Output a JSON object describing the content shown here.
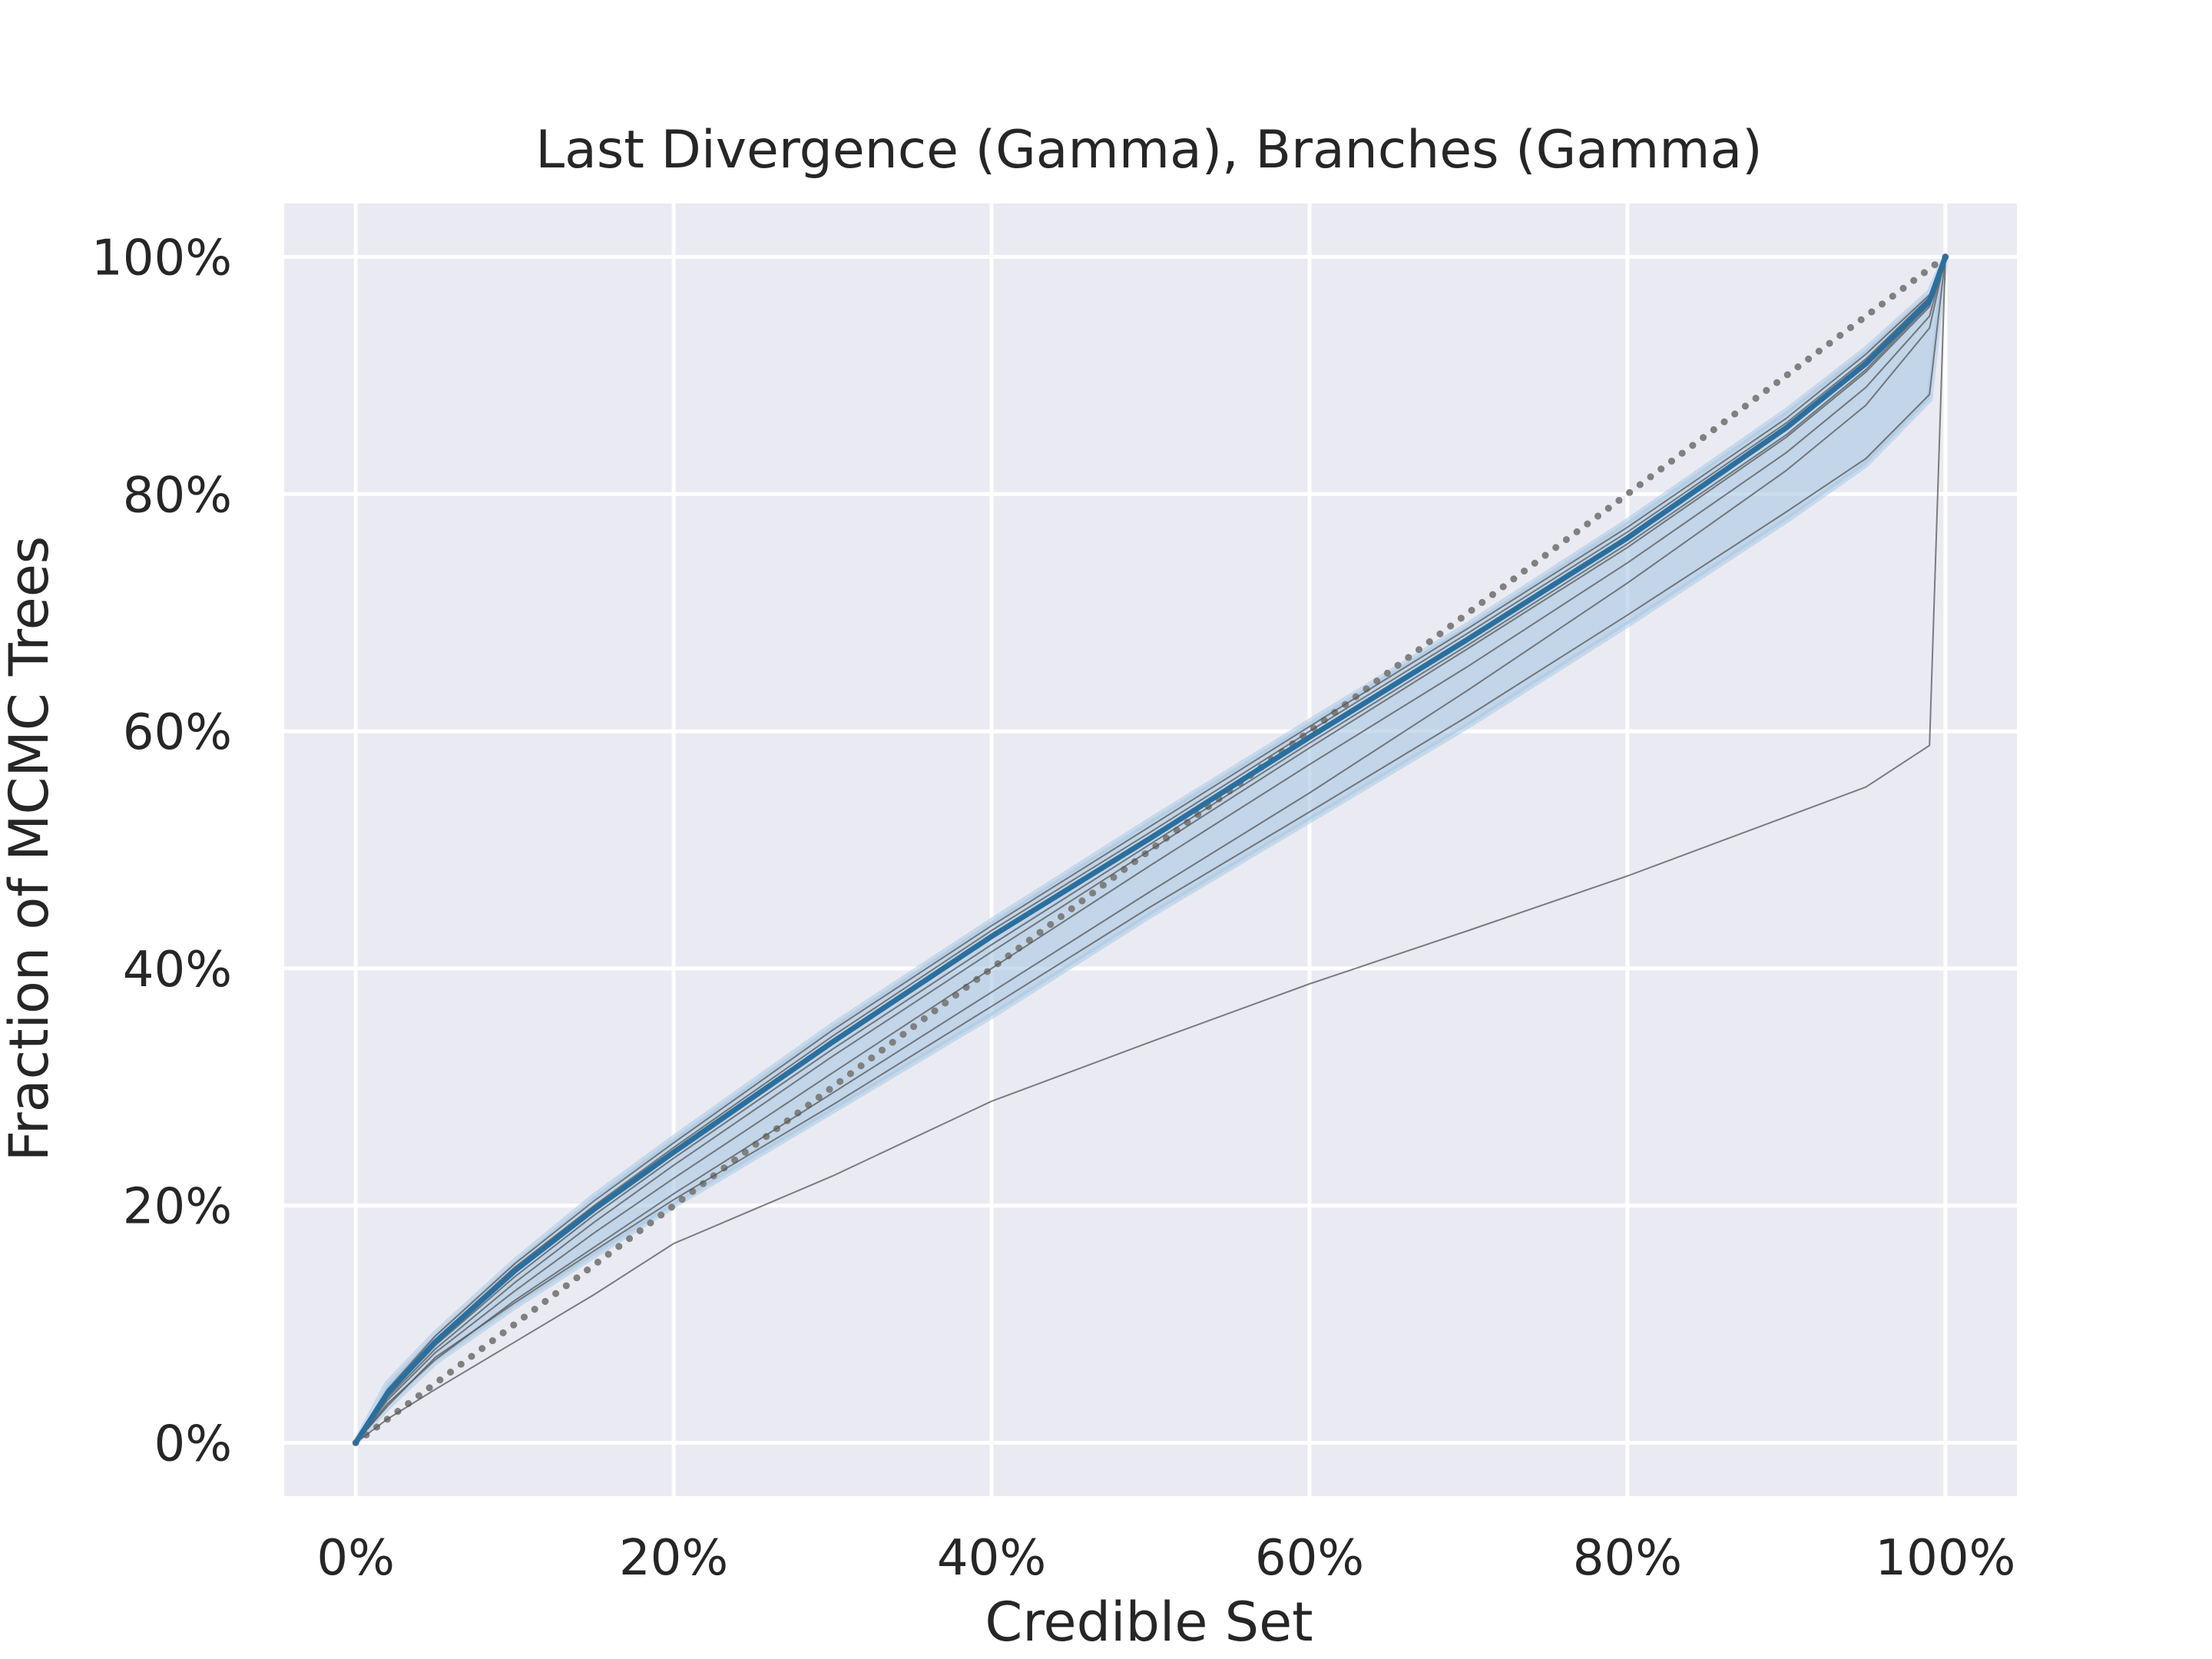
{
  "chart_data": {
    "type": "line",
    "title": "Last Divergence (Gamma), Branches (Gamma)",
    "xlabel": "Credible Set",
    "ylabel": "Fraction of MCMC Trees",
    "xlim": [
      -0.045,
      1.045
    ],
    "ylim": [
      -0.045,
      1.045
    ],
    "xticks": [
      0,
      0.2,
      0.4,
      0.6,
      0.8,
      1.0
    ],
    "yticks": [
      0,
      0.2,
      0.4,
      0.6,
      0.8,
      1.0
    ],
    "xtick_labels": [
      "0%",
      "20%",
      "40%",
      "60%",
      "80%",
      "100%"
    ],
    "ytick_labels": [
      "0%",
      "20%",
      "40%",
      "60%",
      "80%",
      "100%"
    ],
    "grid": true,
    "background": "#eaeaf2",
    "colors": {
      "mean": "#2b6f9e",
      "band": "#a9c8e3",
      "replicates": "#555555",
      "reference": "#808080"
    },
    "reference_line": {
      "style": "dotted",
      "x": [
        0,
        1
      ],
      "y": [
        0,
        1
      ]
    },
    "x": [
      0,
      0.02,
      0.05,
      0.1,
      0.15,
      0.2,
      0.3,
      0.4,
      0.5,
      0.6,
      0.7,
      0.8,
      0.9,
      0.95,
      0.99,
      1.0
    ],
    "series": [
      {
        "role": "band_upper",
        "values": [
          0,
          0.05,
          0.092,
          0.153,
          0.208,
          0.257,
          0.352,
          0.44,
          0.525,
          0.608,
          0.69,
          0.777,
          0.87,
          0.922,
          0.97,
          1.0
        ]
      },
      {
        "role": "band_lower",
        "values": [
          0,
          0.03,
          0.068,
          0.115,
          0.158,
          0.2,
          0.28,
          0.36,
          0.445,
          0.525,
          0.605,
          0.69,
          0.778,
          0.825,
          0.88,
          1.0
        ]
      },
      {
        "role": "mean",
        "values": [
          0,
          0.042,
          0.085,
          0.145,
          0.197,
          0.245,
          0.338,
          0.427,
          0.51,
          0.595,
          0.678,
          0.763,
          0.856,
          0.91,
          0.963,
          1.0
        ]
      },
      {
        "role": "replicate",
        "values": [
          0,
          0.043,
          0.087,
          0.148,
          0.2,
          0.249,
          0.343,
          0.432,
          0.515,
          0.6,
          0.683,
          0.768,
          0.86,
          0.914,
          0.966,
          1.0
        ]
      },
      {
        "role": "replicate",
        "values": [
          0,
          0.04,
          0.082,
          0.14,
          0.192,
          0.24,
          0.332,
          0.42,
          0.505,
          0.59,
          0.673,
          0.758,
          0.85,
          0.905,
          0.96,
          1.0
        ]
      },
      {
        "role": "replicate",
        "values": [
          0,
          0.045,
          0.09,
          0.151,
          0.204,
          0.253,
          0.348,
          0.436,
          0.52,
          0.604,
          0.687,
          0.772,
          0.864,
          0.918,
          0.968,
          1.0
        ]
      },
      {
        "role": "replicate",
        "values": [
          0,
          0.038,
          0.079,
          0.135,
          0.186,
          0.234,
          0.326,
          0.414,
          0.5,
          0.586,
          0.67,
          0.755,
          0.848,
          0.903,
          0.958,
          1.0
        ]
      },
      {
        "role": "replicate",
        "values": [
          0,
          0.036,
          0.076,
          0.128,
          0.177,
          0.223,
          0.312,
          0.4,
          0.487,
          0.572,
          0.655,
          0.742,
          0.835,
          0.89,
          0.95,
          1.0
        ]
      },
      {
        "role": "replicate",
        "values": [
          0,
          0.033,
          0.07,
          0.12,
          0.165,
          0.21,
          0.295,
          0.38,
          0.465,
          0.548,
          0.635,
          0.725,
          0.82,
          0.875,
          0.94,
          1.0
        ]
      },
      {
        "role": "replicate",
        "values": [
          0,
          0.031,
          0.072,
          0.118,
          0.162,
          0.205,
          0.285,
          0.368,
          0.452,
          0.532,
          0.613,
          0.698,
          0.785,
          0.83,
          0.884,
          1.0
        ]
      },
      {
        "role": "replicate",
        "values": [
          0,
          0.02,
          0.045,
          0.085,
          0.125,
          0.168,
          0.225,
          0.288,
          0.338,
          0.387,
          0.432,
          0.478,
          0.528,
          0.553,
          0.588,
          1.0
        ]
      }
    ]
  }
}
